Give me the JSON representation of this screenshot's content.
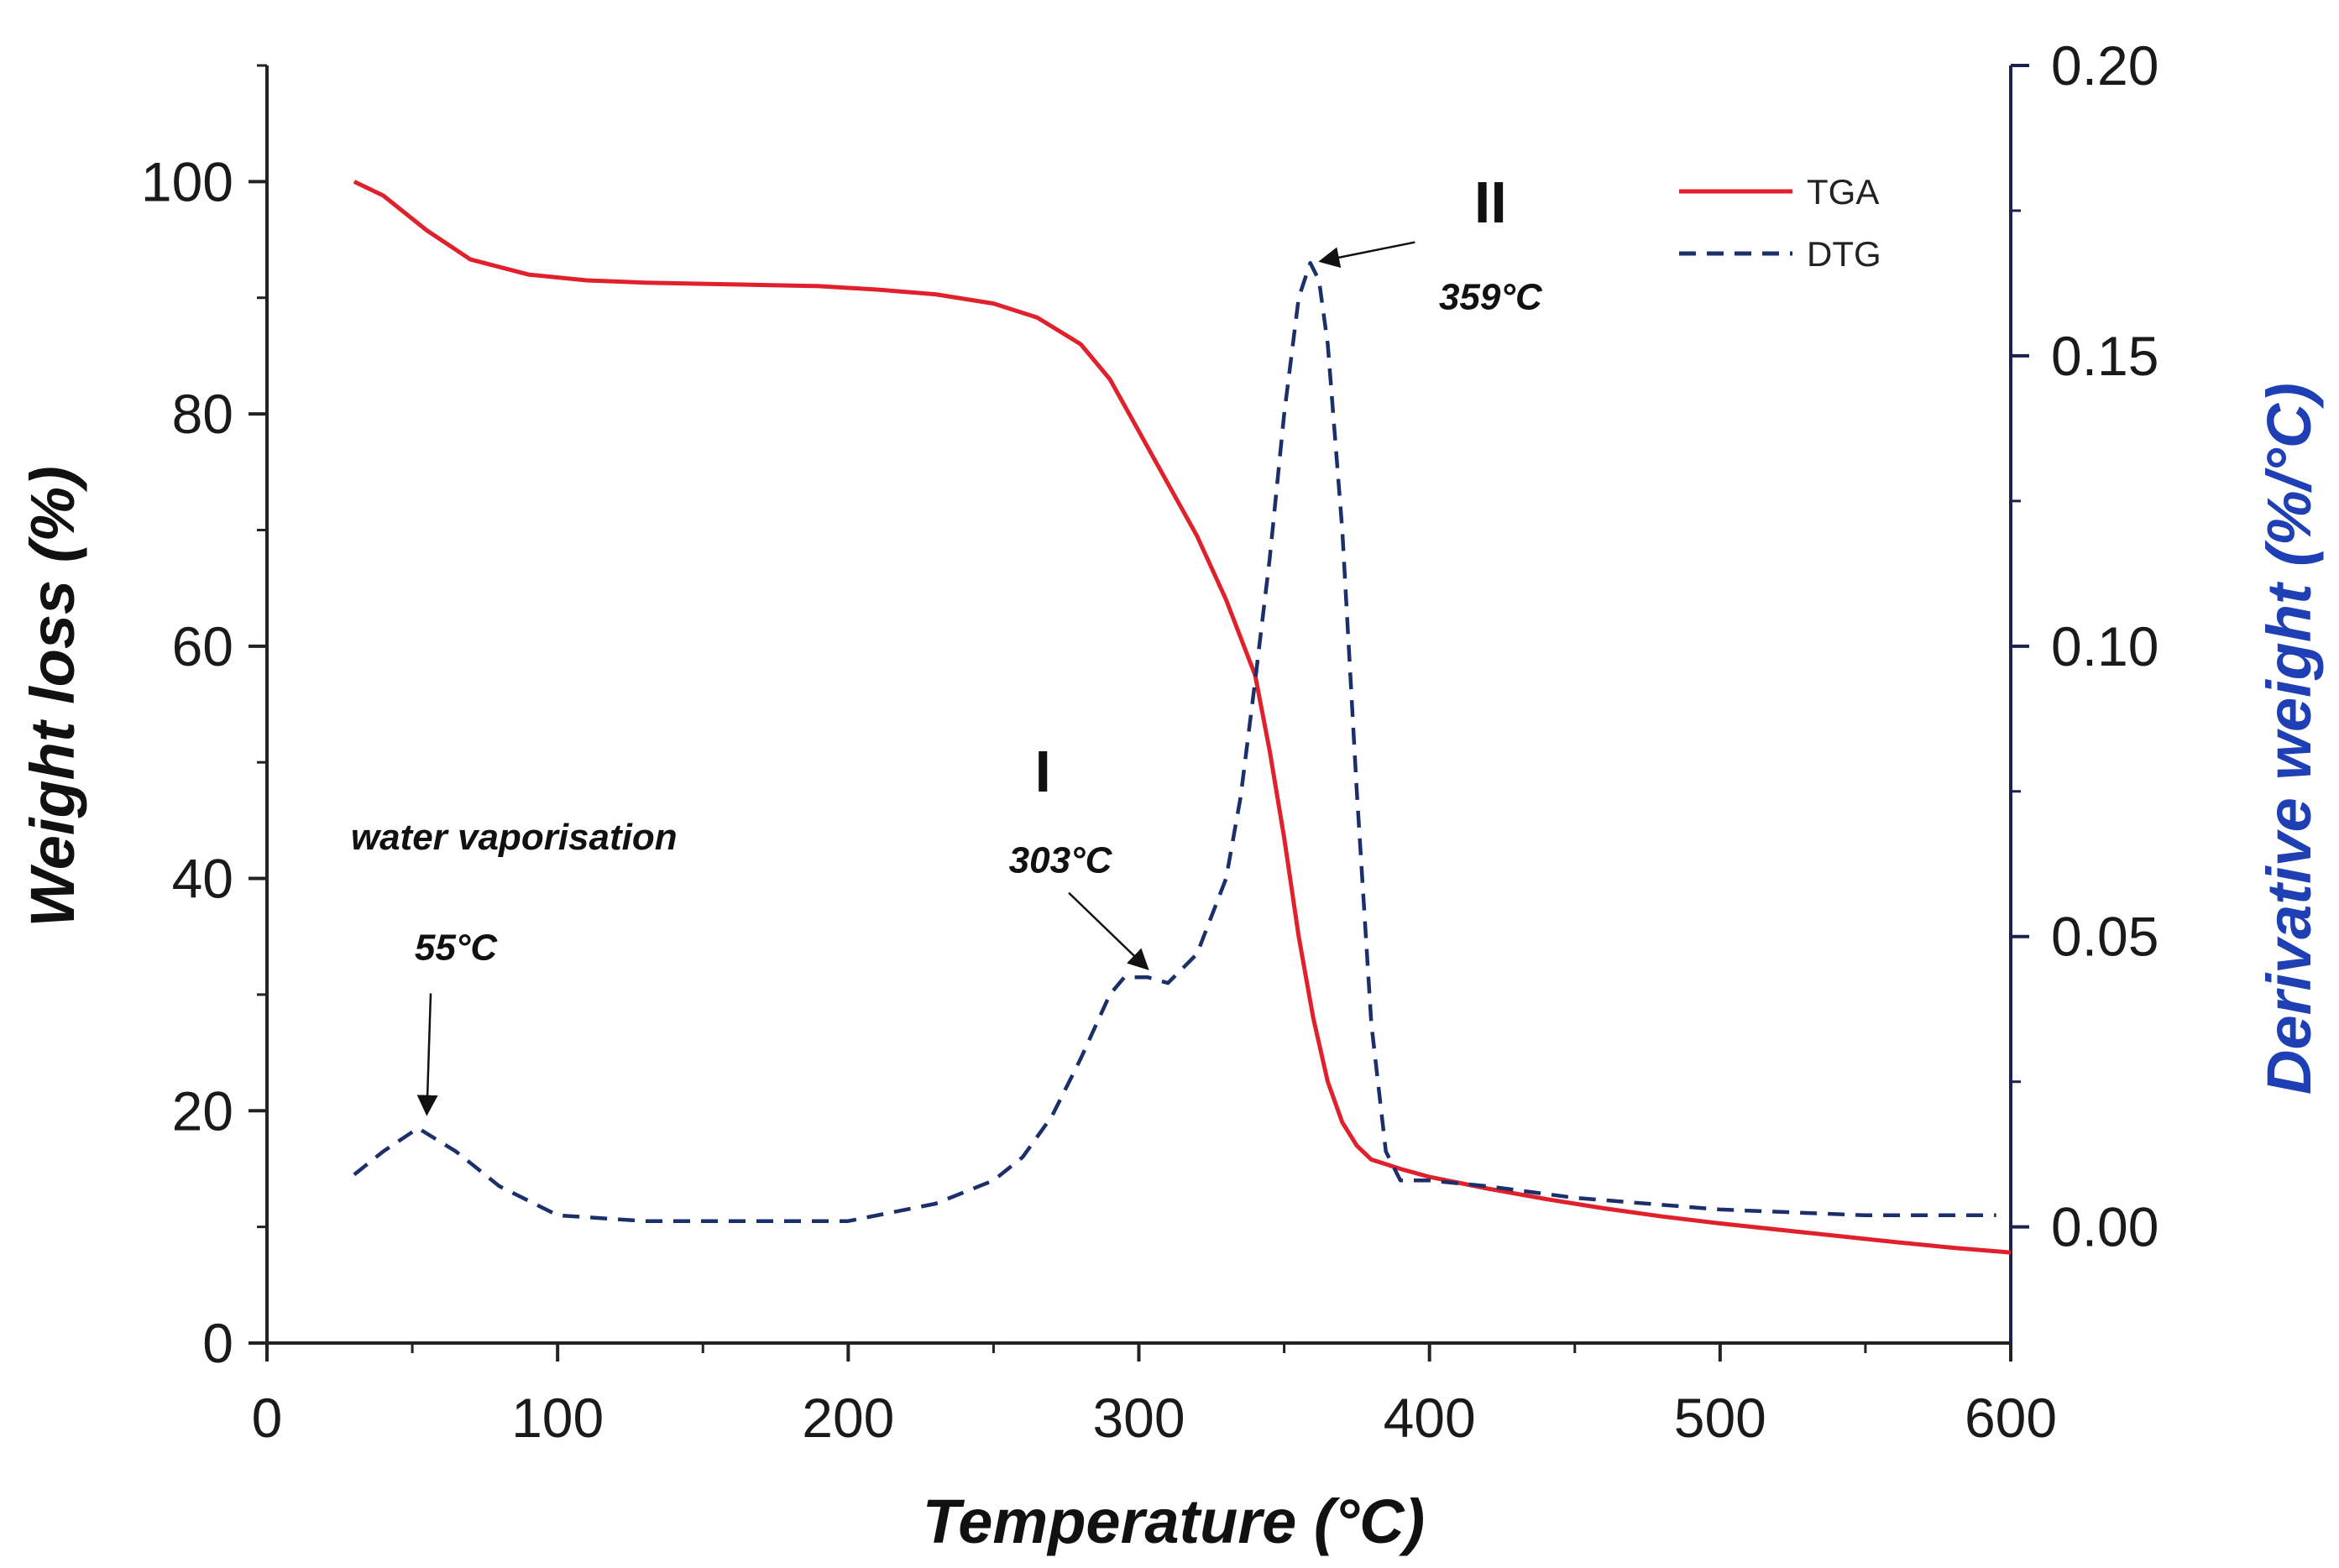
{
  "chart_data": {
    "type": "line",
    "title": "",
    "xlabel": "Temperature (°C)",
    "ylabel_left": "Weight loss (%)",
    "ylabel_right": "Derivative weight (%/°C)",
    "xlim": [
      0,
      600
    ],
    "ylim_left": [
      0,
      110
    ],
    "ylim_right": [
      -0.02,
      0.2
    ],
    "x_ticks": [
      "0",
      "100",
      "200",
      "300",
      "400",
      "500",
      "600"
    ],
    "y_left_ticks": [
      "0",
      "20",
      "40",
      "60",
      "80",
      "100"
    ],
    "y_right_ticks": [
      "0.00",
      "0.05",
      "0.10",
      "0.15",
      "0.20"
    ],
    "grid": false,
    "legend_position": "top-right",
    "series": [
      {
        "name": "TGA",
        "axis": "left",
        "style": "solid",
        "color": "#e0202a",
        "x": [
          30,
          40,
          55,
          70,
          90,
          110,
          130,
          150,
          170,
          190,
          210,
          230,
          250,
          265,
          280,
          290,
          300,
          310,
          320,
          330,
          340,
          345,
          350,
          355,
          360,
          365,
          370,
          375,
          380,
          390,
          400,
          420,
          440,
          460,
          480,
          500,
          530,
          560,
          580,
          600
        ],
        "values": [
          100,
          98.8,
          95.8,
          93.3,
          92.0,
          91.5,
          91.3,
          91.2,
          91.1,
          91.0,
          90.7,
          90.3,
          89.5,
          88.3,
          86.0,
          83.0,
          78.5,
          74.0,
          69.5,
          64.0,
          57.5,
          51.0,
          43.5,
          35.0,
          28.0,
          22.5,
          19.0,
          17.0,
          15.8,
          15.0,
          14.3,
          13.3,
          12.4,
          11.6,
          10.9,
          10.3,
          9.5,
          8.7,
          8.2,
          7.8
        ]
      },
      {
        "name": "DTG",
        "axis": "right",
        "style": "dashed",
        "color": "#1b2f6b",
        "x": [
          30,
          40,
          52,
          65,
          80,
          100,
          130,
          160,
          200,
          230,
          250,
          260,
          270,
          280,
          290,
          295,
          303,
          310,
          320,
          330,
          335,
          340,
          345,
          350,
          355,
          359,
          362,
          365,
          370,
          375,
          380,
          385,
          390,
          400,
          420,
          450,
          500,
          550,
          595
        ],
        "values": [
          0.009,
          0.013,
          0.017,
          0.013,
          0.007,
          0.002,
          0.001,
          0.001,
          0.001,
          0.004,
          0.008,
          0.012,
          0.019,
          0.029,
          0.04,
          0.043,
          0.043,
          0.042,
          0.047,
          0.06,
          0.074,
          0.094,
          0.115,
          0.14,
          0.16,
          0.166,
          0.163,
          0.152,
          0.12,
          0.075,
          0.035,
          0.013,
          0.008,
          0.008,
          0.007,
          0.005,
          0.003,
          0.002,
          0.002
        ]
      }
    ],
    "annotations": [
      {
        "text": "water vaporisation",
        "x": 85,
        "y": 42.5,
        "kind": "italic"
      },
      {
        "text": "55°C",
        "x": 65,
        "y": 33,
        "kind": "italic",
        "arrow_to": [
          55,
          0.018
        ]
      },
      {
        "text": "I",
        "x": 267,
        "y": 47.5,
        "kind": "roman"
      },
      {
        "text": "303°C",
        "x": 273,
        "y": 40.5,
        "kind": "italic",
        "arrow_to": [
          303,
          0.043
        ]
      },
      {
        "text": "II",
        "x": 421,
        "y": 96.5,
        "kind": "roman"
      },
      {
        "text": "359°C",
        "x": 421,
        "y": 89,
        "kind": "italic",
        "arrow_to": [
          359,
          0.166
        ]
      }
    ]
  }
}
